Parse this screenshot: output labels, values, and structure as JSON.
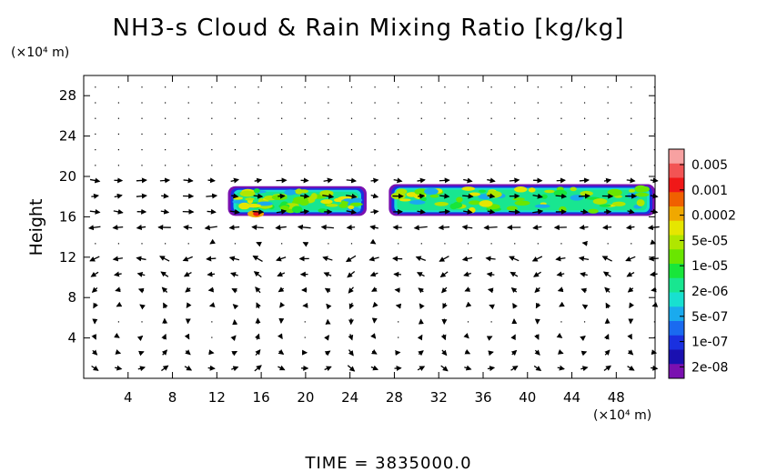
{
  "chart_data": {
    "type": "heatmap",
    "title": "NH3-s Cloud & Rain Mixing Ratio [kg/kg]",
    "xlabel": "",
    "ylabel": "Height",
    "x_unit": "(×10⁴ m)",
    "y_unit": "(×10⁴ m)",
    "xlim": [
      0,
      51.5
    ],
    "ylim": [
      0,
      30
    ],
    "x_ticks": [
      4,
      8,
      12,
      16,
      20,
      24,
      28,
      32,
      36,
      40,
      44,
      48
    ],
    "y_ticks": [
      4,
      8,
      12,
      16,
      20,
      24,
      28
    ],
    "x_tick_labels": [
      "4",
      "8",
      "12",
      "16",
      "20",
      "24",
      "28",
      "32",
      "36",
      "40",
      "44",
      "48"
    ],
    "y_tick_labels": [
      "4",
      "8",
      "12",
      "16",
      "20",
      "24",
      "28"
    ],
    "colorbar": {
      "labels": [
        "0.005",
        "0.001",
        "0.0002",
        "5e-05",
        "1e-05",
        "2e-06",
        "5e-07",
        "1e-07",
        "2e-08"
      ],
      "colors_top_to_bottom": [
        "#f7a1a1",
        "#f25454",
        "#f01818",
        "#f06000",
        "#f0a800",
        "#e6e600",
        "#b0e600",
        "#6ae600",
        "#18e63a",
        "#18e690",
        "#18e0d0",
        "#1aaaee",
        "#1a6af0",
        "#1a30e0",
        "#1a10b0",
        "#7a10b0"
      ]
    },
    "cloud_regions": [
      {
        "x_range": [
          13,
          25.5
        ],
        "y_range": [
          16.0,
          19.3
        ]
      },
      {
        "x_range": [
          27.5,
          51.5
        ],
        "y_range": [
          16.0,
          19.5
        ]
      }
    ],
    "vector_field": "wind vectors shown on a regular grid",
    "annotation": "TIME  =  3835000.0"
  }
}
